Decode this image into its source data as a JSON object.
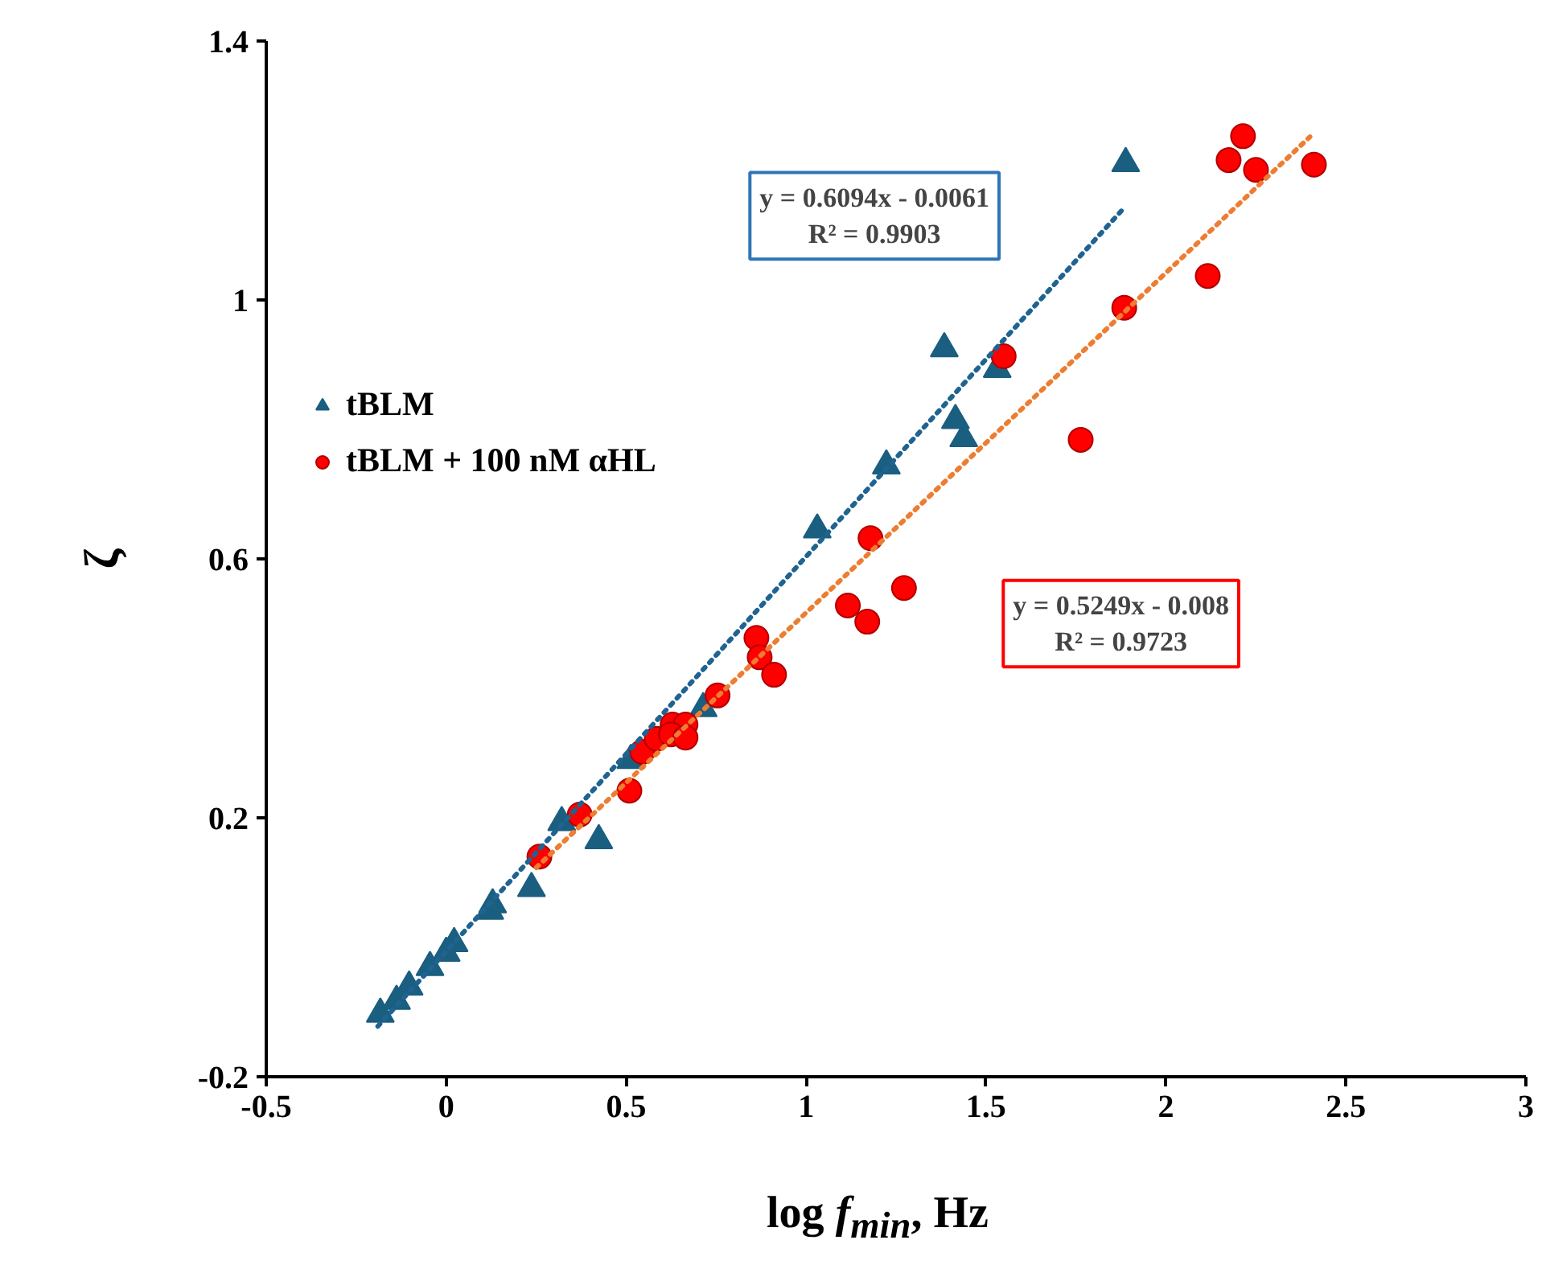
{
  "chart_data": {
    "type": "scatter",
    "xlabel": "log f$_{min}$, Hz",
    "ylabel": "ζ",
    "xlim": [
      -0.5,
      3
    ],
    "ylim": [
      -0.2,
      1.4
    ],
    "xticks": [
      -0.5,
      0,
      0.5,
      1,
      1.5,
      2,
      2.5,
      3
    ],
    "yticks": [
      -0.2,
      0.2,
      0.6,
      1,
      1.4
    ],
    "grid": false,
    "legend": "top left",
    "annotations": [
      "y = 0.6094x - 0.0061\nR² = 0.9903",
      "y = 0.5249x - 0.008\nR² = 0.9723"
    ],
    "series": [
      {
        "name": "tBLM",
        "marker": "triangle",
        "color": "#1a5e80",
        "x": [
          -0.183,
          -0.138,
          -0.103,
          -0.045,
          0.0,
          0.022,
          0.121,
          0.129,
          0.237,
          0.321,
          0.424,
          0.513,
          0.714,
          1.031,
          1.223,
          1.384,
          1.415,
          1.438,
          1.531,
          1.888
        ],
        "values": [
          -0.103,
          -0.083,
          -0.061,
          -0.031,
          -0.009,
          0.006,
          0.056,
          0.066,
          0.091,
          0.193,
          0.165,
          0.289,
          0.369,
          0.645,
          0.744,
          0.925,
          0.814,
          0.786,
          0.893,
          1.211
        ]
      },
      {
        "name": "tBLM + 100 nM αHL",
        "marker": "circle",
        "color": "#ff0000",
        "x": [
          0.259,
          0.371,
          0.509,
          0.545,
          0.585,
          0.629,
          0.665,
          0.625,
          0.665,
          0.754,
          0.862,
          0.871,
          0.911,
          1.116,
          1.17,
          1.179,
          1.272,
          1.549,
          1.763,
          1.884,
          2.116,
          2.174,
          2.214,
          2.25,
          2.411
        ],
        "values": [
          0.14,
          0.205,
          0.242,
          0.302,
          0.322,
          0.344,
          0.344,
          0.329,
          0.324,
          0.389,
          0.478,
          0.448,
          0.421,
          0.528,
          0.503,
          0.632,
          0.555,
          0.913,
          0.784,
          0.988,
          1.037,
          1.216,
          1.253,
          1.201,
          1.209
        ]
      },
      {
        "type": "line",
        "line_style": "dotted",
        "color": "#1f6391",
        "x": [
          -0.19,
          1.88
        ],
        "values": [
          -0.122,
          1.14
        ]
      },
      {
        "type": "line",
        "line_style": "dotted",
        "color": "#ed7d31",
        "x": [
          0.25,
          2.4
        ],
        "values": [
          0.123,
          1.252
        ]
      }
    ]
  }
}
